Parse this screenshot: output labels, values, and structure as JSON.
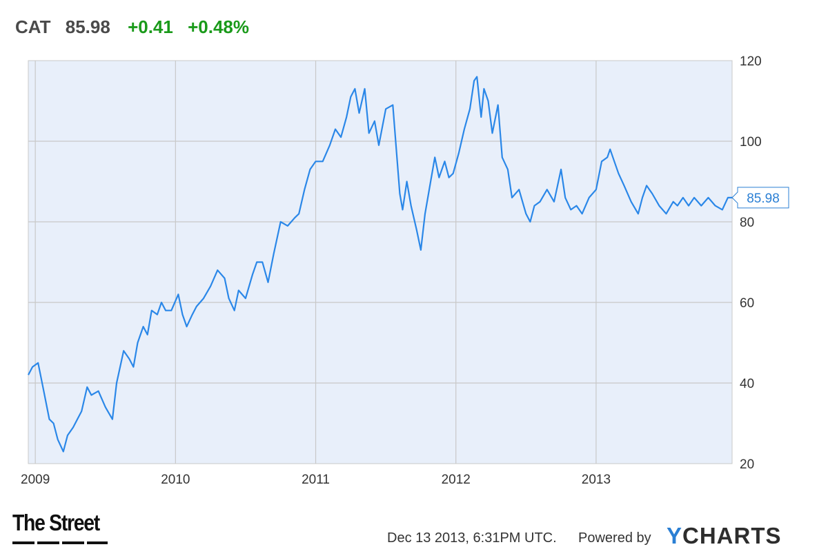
{
  "header": {
    "ticker": "CAT",
    "price": "85.98",
    "change": "+0.41",
    "change_pct": "+0.48%"
  },
  "chart_data": {
    "type": "line",
    "title": "",
    "xlabel": "",
    "ylabel": "",
    "ylim": [
      20,
      120
    ],
    "xlim": [
      2008.95,
      2013.97
    ],
    "y_ticks": [
      20,
      40,
      60,
      80,
      100,
      120
    ],
    "x_ticks": [
      2009,
      2010,
      2011,
      2012,
      2013
    ],
    "x_tick_labels": [
      "2009",
      "2010",
      "2011",
      "2012",
      "2013"
    ],
    "grid": true,
    "colors": {
      "line": "#2a87e8",
      "plot_bg": "#e8effa",
      "grid": "#c8c8c8",
      "last_label": "#2a7fd4"
    },
    "last_value_label": "85.98",
    "series": [
      {
        "x": [
          2008.95,
          2008.98,
          2009.02,
          2009.06,
          2009.1,
          2009.13,
          2009.16,
          2009.2,
          2009.23,
          2009.27,
          2009.3,
          2009.33,
          2009.37,
          2009.4,
          2009.45,
          2009.5,
          2009.55,
          2009.58,
          2009.63,
          2009.67,
          2009.7,
          2009.73,
          2009.77,
          2009.8,
          2009.83,
          2009.87,
          2009.9,
          2009.93,
          2009.97,
          2010.02,
          2010.05,
          2010.08,
          2010.12,
          2010.15,
          2010.2,
          2010.25,
          2010.3,
          2010.35,
          2010.38,
          2010.42,
          2010.45,
          2010.5,
          2010.55,
          2010.58,
          2010.62,
          2010.66,
          2010.7,
          2010.75,
          2010.8,
          2010.85,
          2010.88,
          2010.92,
          2010.96,
          2011.0,
          2011.05,
          2011.1,
          2011.14,
          2011.18,
          2011.22,
          2011.25,
          2011.28,
          2011.31,
          2011.35,
          2011.38,
          2011.42,
          2011.45,
          2011.5,
          2011.55,
          2011.6,
          2011.62,
          2011.65,
          2011.68,
          2011.72,
          2011.75,
          2011.78,
          2011.82,
          2011.85,
          2011.88,
          2011.92,
          2011.95,
          2011.98,
          2012.02,
          2012.06,
          2012.1,
          2012.13,
          2012.15,
          2012.18,
          2012.2,
          2012.23,
          2012.26,
          2012.3,
          2012.33,
          2012.37,
          2012.4,
          2012.45,
          2012.5,
          2012.53,
          2012.56,
          2012.6,
          2012.65,
          2012.7,
          2012.75,
          2012.78,
          2012.82,
          2012.86,
          2012.9,
          2012.95,
          2013.0,
          2013.04,
          2013.08,
          2013.1,
          2013.13,
          2013.16,
          2013.2,
          2013.25,
          2013.3,
          2013.33,
          2013.36,
          2013.4,
          2013.45,
          2013.5,
          2013.55,
          2013.58,
          2013.62,
          2013.66,
          2013.7,
          2013.75,
          2013.8,
          2013.85,
          2013.9,
          2013.94,
          2013.97
        ],
        "y": [
          42,
          44,
          45,
          38,
          31,
          30,
          26,
          23,
          27,
          29,
          31,
          33,
          39,
          37,
          38,
          34,
          31,
          40,
          48,
          46,
          44,
          50,
          54,
          52,
          58,
          57,
          60,
          58,
          58,
          62,
          57,
          54,
          57,
          59,
          61,
          64,
          68,
          66,
          61,
          58,
          63,
          61,
          67,
          70,
          70,
          65,
          72,
          80,
          79,
          81,
          82,
          88,
          93,
          95,
          95,
          99,
          103,
          101,
          106,
          111,
          113,
          107,
          113,
          102,
          105,
          99,
          108,
          109,
          87,
          83,
          90,
          84,
          78,
          73,
          82,
          90,
          96,
          91,
          95,
          91,
          92,
          97,
          103,
          108,
          115,
          116,
          106,
          113,
          110,
          102,
          109,
          96,
          93,
          86,
          88,
          82,
          80,
          84,
          85,
          88,
          85,
          93,
          86,
          83,
          84,
          82,
          86,
          88,
          95,
          96,
          98,
          95,
          92,
          89,
          85,
          82,
          86,
          89,
          87,
          84,
          82,
          85,
          84,
          86,
          84,
          86,
          84,
          86,
          84,
          83,
          86,
          86
        ]
      }
    ]
  },
  "branding": {
    "left_logo": "The Street",
    "timestamp": "Dec 13 2013, 6:31PM UTC.",
    "powered_by": "Powered by",
    "logo_y": "Y",
    "logo_rest": "CHARTS"
  }
}
